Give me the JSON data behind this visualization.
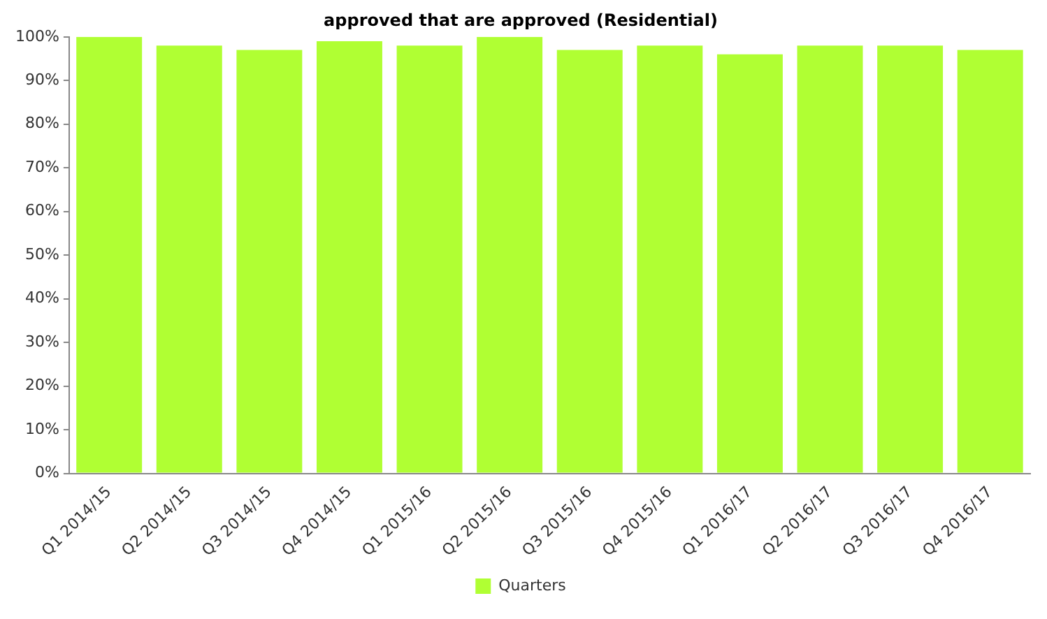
{
  "chart_data": {
    "type": "bar",
    "title": "approved that are approved (Residential)",
    "categories": [
      "Q1 2014/15",
      "Q2 2014/15",
      "Q3 2014/15",
      "Q4 2014/15",
      "Q1 2015/16",
      "Q2 2015/16",
      "Q3 2015/16",
      "Q4 2015/16",
      "Q1 2016/17",
      "Q2 2016/17",
      "Q3 2016/17",
      "Q4 2016/17"
    ],
    "series": [
      {
        "name": "Quarters",
        "color": "#b0ff33",
        "values": [
          100,
          98,
          97,
          99,
          98,
          100,
          97,
          98,
          96,
          98,
          98,
          97
        ]
      }
    ],
    "ylim": [
      0,
      100
    ],
    "yticks": [
      {
        "value": 0,
        "label": "0%"
      },
      {
        "value": 10,
        "label": "10%"
      },
      {
        "value": 20,
        "label": "20%"
      },
      {
        "value": 30,
        "label": "30%"
      },
      {
        "value": 40,
        "label": "40%"
      },
      {
        "value": 50,
        "label": "50%"
      },
      {
        "value": 60,
        "label": "60%"
      },
      {
        "value": 70,
        "label": "70%"
      },
      {
        "value": 80,
        "label": "80%"
      },
      {
        "value": 90,
        "label": "90%"
      },
      {
        "value": 100,
        "label": "100%"
      }
    ],
    "grid": false,
    "legend": "bottom"
  }
}
